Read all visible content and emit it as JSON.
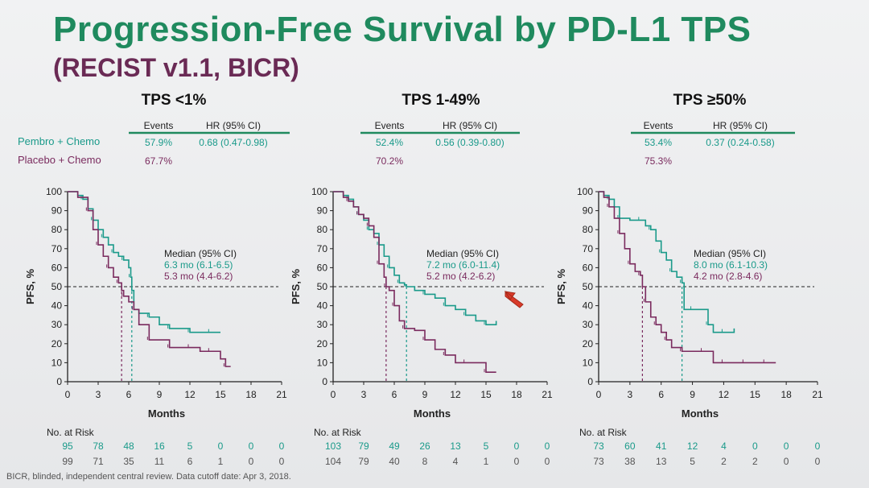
{
  "title": "Progression-Free Survival by PD-L1 TPS",
  "subtitle": "(RECIST v1.1, BICR)",
  "footnote": "BICR, blinded, independent central review. Data cutoff date: Apr 3, 2018.",
  "legend": {
    "pembro": "Pembro + Chemo",
    "placebo": "Placebo + Chemo"
  },
  "labels": {
    "events": "Events",
    "hr": "HR (95% CI)",
    "median_title": "Median (95% CI)",
    "at_risk": "No. at Risk",
    "xlabel": "Months",
    "ylabel": "PFS, %"
  },
  "colors": {
    "pembro": "#1a9a8a",
    "placebo": "#7a2a5e",
    "green": "#1f8a5e",
    "arrow": "#d93a2a"
  },
  "chart_data": [
    {
      "type": "line",
      "title": "TPS <1%",
      "xlabel": "Months",
      "ylabel": "PFS, %",
      "xlim": [
        0,
        21
      ],
      "ylim": [
        0,
        100
      ],
      "xticks": [
        0,
        3,
        6,
        9,
        12,
        15,
        18,
        21
      ],
      "yticks": [
        0,
        10,
        20,
        30,
        40,
        50,
        60,
        70,
        80,
        90,
        100
      ],
      "events_pembro": "57.9%",
      "hr_pembro": "0.68 (0.47-0.98)",
      "events_placebo": "67.7%",
      "median_pembro": "6.3 mo (6.1-6.5)",
      "median_placebo": "5.3 mo (4.4-6.2)",
      "median_x": [
        6.3,
        5.3
      ],
      "series": [
        {
          "name": "Pembro + Chemo",
          "x": [
            0,
            1,
            1.5,
            2,
            2.5,
            3,
            3.5,
            4,
            4.5,
            5,
            5.5,
            6,
            6.2,
            6.3,
            6.5,
            7,
            8,
            9,
            10,
            11,
            12,
            13,
            14,
            15
          ],
          "values": [
            100,
            98,
            96,
            91,
            85,
            80,
            76,
            72,
            68,
            66,
            64,
            60,
            55,
            48,
            38,
            36,
            34,
            30,
            28,
            28,
            26,
            26,
            26,
            26
          ]
        },
        {
          "name": "Placebo + Chemo",
          "x": [
            0,
            1,
            2,
            2.5,
            3,
            3.5,
            4,
            4.5,
            5,
            5.3,
            5.5,
            6,
            6.5,
            7,
            8,
            9,
            10,
            11,
            12,
            13,
            14,
            15,
            15.5,
            16
          ],
          "values": [
            100,
            97,
            90,
            80,
            72,
            66,
            60,
            55,
            52,
            48,
            45,
            42,
            38,
            30,
            22,
            22,
            18,
            18,
            18,
            16,
            16,
            12,
            8,
            8
          ]
        }
      ],
      "at_risk_times": [
        "0",
        "3",
        "6",
        "9",
        "12",
        "15",
        "18",
        "21"
      ],
      "at_risk_pembro": [
        "95",
        "78",
        "48",
        "16",
        "5",
        "0",
        "0",
        "0"
      ],
      "at_risk_placebo": [
        "99",
        "71",
        "35",
        "11",
        "6",
        "1",
        "0",
        "0"
      ]
    },
    {
      "type": "line",
      "title": "TPS 1-49%",
      "xlabel": "Months",
      "ylabel": "PFS, %",
      "xlim": [
        0,
        21
      ],
      "ylim": [
        0,
        100
      ],
      "xticks": [
        0,
        3,
        6,
        9,
        12,
        15,
        18,
        21
      ],
      "yticks": [
        0,
        10,
        20,
        30,
        40,
        50,
        60,
        70,
        80,
        90,
        100
      ],
      "events_pembro": "52.4%",
      "hr_pembro": "0.56 (0.39-0.80)",
      "events_placebo": "70.2%",
      "median_pembro": "7.2 mo (6.0-11.4)",
      "median_placebo": "5.2 mo (4.2-6.2)",
      "median_x": [
        7.2,
        5.2
      ],
      "series": [
        {
          "name": "Pembro + Chemo",
          "x": [
            0,
            1,
            1.5,
            2,
            2.5,
            3,
            3.5,
            4,
            4.5,
            5,
            5.5,
            6,
            6.5,
            7,
            7.2,
            8,
            9,
            10,
            11,
            12,
            13,
            14,
            15,
            16
          ],
          "values": [
            100,
            98,
            96,
            92,
            88,
            85,
            80,
            78,
            72,
            66,
            60,
            56,
            52,
            51,
            50,
            48,
            46,
            44,
            40,
            38,
            35,
            32,
            30,
            32
          ]
        },
        {
          "name": "Placebo + Chemo",
          "x": [
            0,
            1,
            1.5,
            2,
            2.5,
            3,
            3.5,
            4,
            4.5,
            5,
            5.2,
            5.5,
            6,
            6.5,
            7,
            8,
            9,
            10,
            11,
            12,
            13,
            14,
            15,
            16
          ],
          "values": [
            100,
            97,
            95,
            92,
            88,
            86,
            82,
            76,
            62,
            55,
            50,
            48,
            40,
            32,
            28,
            27,
            22,
            17,
            14,
            10,
            10,
            10,
            5,
            5
          ]
        }
      ],
      "at_risk_times": [
        "0",
        "3",
        "6",
        "9",
        "12",
        "15",
        "18",
        "21"
      ],
      "at_risk_pembro": [
        "103",
        "79",
        "49",
        "26",
        "13",
        "5",
        "0",
        "0"
      ],
      "at_risk_placebo": [
        "104",
        "79",
        "40",
        "8",
        "4",
        "1",
        "0",
        "0"
      ]
    },
    {
      "type": "line",
      "title": "TPS ≥50%",
      "xlabel": "Months",
      "ylabel": "PFS, %",
      "xlim": [
        0,
        21
      ],
      "ylim": [
        0,
        100
      ],
      "xticks": [
        0,
        3,
        6,
        9,
        12,
        15,
        18,
        21
      ],
      "yticks": [
        0,
        10,
        20,
        30,
        40,
        50,
        60,
        70,
        80,
        90,
        100
      ],
      "events_pembro": "53.4%",
      "hr_pembro": "0.37 (0.24-0.58)",
      "events_placebo": "75.3%",
      "median_pembro": "8.0 mo (6.1-10.3)",
      "median_placebo": "4.2 mo (2.8-4.6)",
      "median_x": [
        8.0,
        4.2
      ],
      "series": [
        {
          "name": "Pembro + Chemo",
          "x": [
            0,
            0.5,
            1,
            1.5,
            2,
            3,
            4,
            4.5,
            5,
            5.5,
            6,
            6.5,
            7,
            7.5,
            8,
            8.2,
            9,
            10,
            10.5,
            11,
            12,
            13
          ],
          "values": [
            100,
            98,
            96,
            92,
            86,
            85,
            85,
            82,
            80,
            74,
            68,
            64,
            58,
            55,
            52,
            38,
            38,
            38,
            30,
            26,
            26,
            28
          ]
        },
        {
          "name": "Placebo + Chemo",
          "x": [
            0,
            0.5,
            1,
            1.5,
            2,
            2.5,
            3,
            3.5,
            4,
            4.2,
            4.5,
            5,
            5.5,
            6,
            6.5,
            7,
            8,
            9,
            10,
            11,
            12,
            13,
            14,
            15,
            16,
            17
          ],
          "values": [
            100,
            97,
            92,
            86,
            78,
            70,
            62,
            58,
            56,
            50,
            42,
            34,
            30,
            26,
            22,
            18,
            16,
            16,
            16,
            10,
            10,
            10,
            10,
            10,
            10,
            10
          ]
        }
      ],
      "at_risk_times": [
        "0",
        "3",
        "6",
        "9",
        "12",
        "15",
        "18",
        "21"
      ],
      "at_risk_pembro": [
        "73",
        "60",
        "41",
        "12",
        "4",
        "0",
        "0",
        "0"
      ],
      "at_risk_placebo": [
        "73",
        "38",
        "13",
        "5",
        "2",
        "2",
        "0",
        "0"
      ]
    }
  ]
}
